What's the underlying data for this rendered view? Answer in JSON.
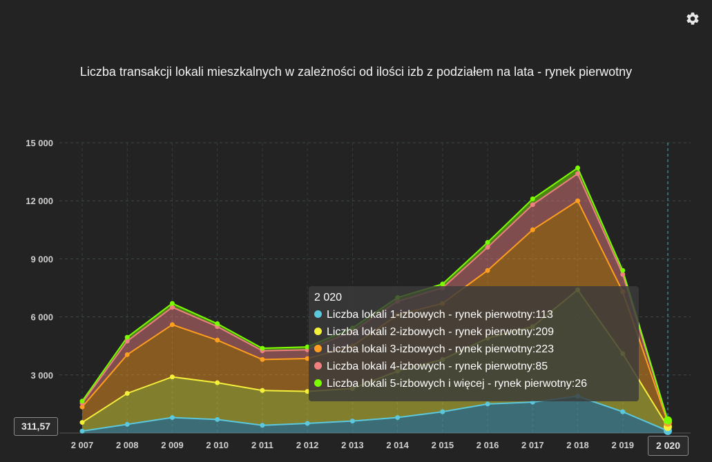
{
  "chart_data": {
    "type": "area",
    "stacked": true,
    "title": "Liczba transakcji lokali mieszkalnych w zależności od ilości izb z podziałem na lata - rynek pierwotny",
    "categories": [
      "2 007",
      "2 008",
      "2 009",
      "2 010",
      "2 011",
      "2 012",
      "2 013",
      "2 014",
      "2 015",
      "2 016",
      "2 017",
      "2 018",
      "2 019",
      "2 020"
    ],
    "y_ticks": [
      "15 000",
      "12 000",
      "9 000",
      "6 000",
      "3 000"
    ],
    "y_tick_values": [
      15000,
      12000,
      9000,
      6000,
      3000
    ],
    "ylim": [
      0,
      15000
    ],
    "grid": true,
    "series": [
      {
        "name": "Liczba lokali 1-izbowych - rynek pierwotny",
        "color": "#5bc8de",
        "values": [
          100,
          450,
          800,
          700,
          400,
          500,
          620,
          800,
          1100,
          1500,
          1600,
          1900,
          1100,
          113
        ]
      },
      {
        "name": "Liczba lokali 2-izbowych - rynek pierwotny",
        "color": "#f5f03a",
        "values": [
          450,
          1600,
          2100,
          1900,
          1800,
          1650,
          1680,
          2400,
          2700,
          3400,
          3900,
          5500,
          3000,
          209
        ]
      },
      {
        "name": "Liczba lokali 3-izbowych - rynek pierwotny",
        "color": "#ff9e1f",
        "values": [
          800,
          2000,
          2700,
          2200,
          1600,
          1700,
          2200,
          2900,
          2900,
          3500,
          5000,
          4600,
          3200,
          223
        ]
      },
      {
        "name": "Liczba lokali 4-izbowych - rynek pierwotny",
        "color": "#f08080",
        "values": [
          200,
          700,
          900,
          700,
          450,
          450,
          750,
          700,
          800,
          1200,
          1300,
          1400,
          900,
          85
        ]
      },
      {
        "name": "Liczba lokali 5-izbowych i więcej - rynek pierwotny",
        "color": "#7cfc00",
        "values": [
          100,
          200,
          200,
          150,
          130,
          150,
          180,
          200,
          200,
          250,
          300,
          300,
          200,
          26
        ]
      }
    ]
  },
  "tooltip": {
    "title": "2 020",
    "rows": [
      "Liczba lokali 1-izbowych - rynek pierwotny:113",
      "Liczba lokali 2-izbowych - rynek pierwotny:209",
      "Liczba lokali 3-izbowych - rynek pierwotny:223",
      "Liczba lokali 4-izbowych - rynek pierwotny:85",
      "Liczba lokali 5-izbowych i więcej - rynek pierwotny:26"
    ]
  },
  "axis_pointer": {
    "y_label": "311,57",
    "x_label": "2 020"
  },
  "icons": {
    "settings": "gear-icon"
  }
}
